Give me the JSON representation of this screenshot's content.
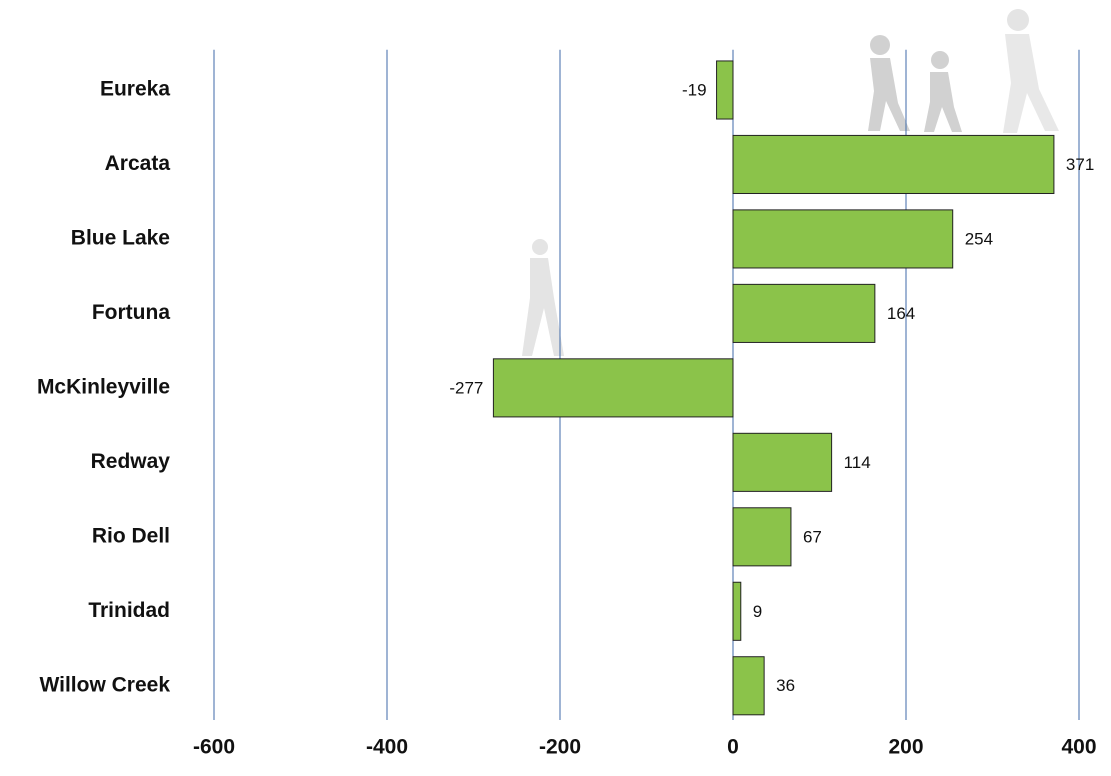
{
  "chart_data": {
    "type": "bar",
    "orientation": "horizontal",
    "categories": [
      "Eureka",
      "Arcata",
      "Blue Lake",
      "Fortuna",
      "McKinleyville",
      "Redway",
      "Rio Dell",
      "Trinidad",
      "Willow Creek"
    ],
    "values": [
      -19,
      371,
      254,
      164,
      -277,
      114,
      67,
      9,
      36
    ],
    "color": "#8bc34a",
    "xlim": [
      -600,
      400
    ],
    "xticks": [
      -600,
      -400,
      -200,
      0,
      200,
      400
    ],
    "grid": true
  }
}
